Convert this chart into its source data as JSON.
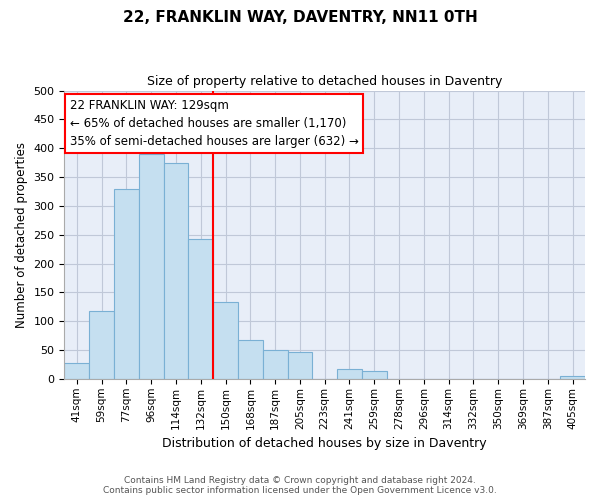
{
  "title": "22, FRANKLIN WAY, DAVENTRY, NN11 0TH",
  "subtitle": "Size of property relative to detached houses in Daventry",
  "xlabel": "Distribution of detached houses by size in Daventry",
  "ylabel": "Number of detached properties",
  "footer_line1": "Contains HM Land Registry data © Crown copyright and database right 2024.",
  "footer_line2": "Contains public sector information licensed under the Open Government Licence v3.0.",
  "bar_labels": [
    "41sqm",
    "59sqm",
    "77sqm",
    "96sqm",
    "114sqm",
    "132sqm",
    "150sqm",
    "168sqm",
    "187sqm",
    "205sqm",
    "223sqm",
    "241sqm",
    "259sqm",
    "278sqm",
    "296sqm",
    "314sqm",
    "332sqm",
    "350sqm",
    "369sqm",
    "387sqm",
    "405sqm"
  ],
  "bar_values": [
    27,
    118,
    330,
    390,
    375,
    243,
    133,
    68,
    50,
    46,
    0,
    18,
    13,
    0,
    0,
    0,
    0,
    0,
    0,
    0,
    5
  ],
  "bar_color": "#c5dff0",
  "bar_edge_color": "#7ab0d4",
  "vline_color": "red",
  "annotation_title": "22 FRANKLIN WAY: 129sqm",
  "annotation_line1": "← 65% of detached houses are smaller (1,170)",
  "annotation_line2": "35% of semi-detached houses are larger (632) →",
  "annotation_box_color": "white",
  "annotation_box_edge": "red",
  "ylim": [
    0,
    500
  ],
  "yticks": [
    0,
    50,
    100,
    150,
    200,
    250,
    300,
    350,
    400,
    450,
    500
  ],
  "background_color": "#e8eef8",
  "grid_color": "#c0c8d8"
}
